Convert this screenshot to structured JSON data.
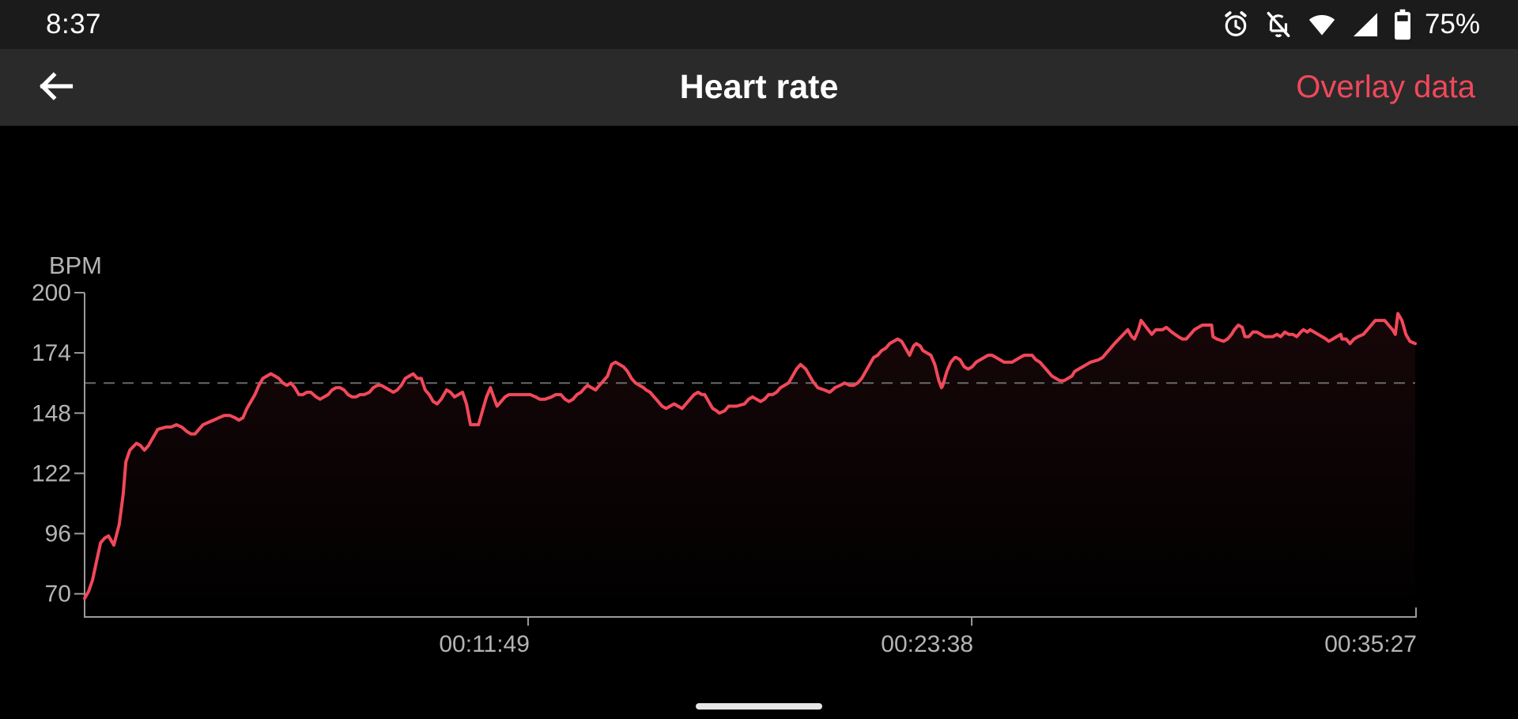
{
  "status_bar": {
    "time": "8:37",
    "battery_percent": "75%",
    "icons": [
      "alarm-icon",
      "notifications-off-icon",
      "wifi-icon",
      "cell-signal-icon",
      "battery-icon"
    ]
  },
  "app_bar": {
    "title": "Heart rate",
    "action": "Overlay data"
  },
  "colors": {
    "accent_red": "#f2485a",
    "status_bar_bg": "#1b1b1c",
    "app_bar_bg": "#2a2a2b",
    "axis": "#9b9b9b",
    "tick_label": "#b4b4b4",
    "threshold_line": "#696969",
    "gesture_handle": "#e6e6e6"
  },
  "chart_data": {
    "type": "area",
    "title": "Heart rate",
    "ylabel": "BPM",
    "y_ticks": [
      200,
      174,
      148,
      122,
      96,
      70
    ],
    "ylim": [
      60,
      200
    ],
    "x_ticks": [
      {
        "label": "00:11:49",
        "f": 0.3333
      },
      {
        "label": "00:23:38",
        "f": 0.6667
      },
      {
        "label": "00:35:27",
        "f": 1.0
      }
    ],
    "threshold_bpm": 161,
    "grid": false,
    "legend": false,
    "line_color": "#f2485a",
    "fill_top": "rgba(242,72,90,0.10)",
    "fill_bottom": "rgba(242,72,90,0)",
    "points": [
      [
        0.0,
        68
      ],
      [
        0.003,
        71
      ],
      [
        0.006,
        76
      ],
      [
        0.009,
        84
      ],
      [
        0.012,
        92
      ],
      [
        0.015,
        94
      ],
      [
        0.018,
        95
      ],
      [
        0.021,
        92
      ],
      [
        0.022,
        91
      ],
      [
        0.026,
        100
      ],
      [
        0.029,
        113
      ],
      [
        0.031,
        127
      ],
      [
        0.034,
        132
      ],
      [
        0.039,
        135
      ],
      [
        0.042,
        134
      ],
      [
        0.045,
        132
      ],
      [
        0.048,
        134
      ],
      [
        0.051,
        137
      ],
      [
        0.055,
        141
      ],
      [
        0.061,
        142
      ],
      [
        0.065,
        142
      ],
      [
        0.069,
        143
      ],
      [
        0.073,
        142
      ],
      [
        0.077,
        140
      ],
      [
        0.08,
        139
      ],
      [
        0.083,
        139
      ],
      [
        0.086,
        141
      ],
      [
        0.089,
        143
      ],
      [
        0.093,
        144
      ],
      [
        0.097,
        145
      ],
      [
        0.101,
        146
      ],
      [
        0.105,
        147
      ],
      [
        0.109,
        147
      ],
      [
        0.113,
        146
      ],
      [
        0.116,
        145
      ],
      [
        0.119,
        146
      ],
      [
        0.122,
        150
      ],
      [
        0.125,
        153
      ],
      [
        0.128,
        156
      ],
      [
        0.131,
        160
      ],
      [
        0.134,
        163
      ],
      [
        0.137,
        164
      ],
      [
        0.14,
        165
      ],
      [
        0.143,
        164
      ],
      [
        0.146,
        163
      ],
      [
        0.149,
        161
      ],
      [
        0.152,
        160
      ],
      [
        0.155,
        161
      ],
      [
        0.158,
        159
      ],
      [
        0.161,
        156
      ],
      [
        0.164,
        156
      ],
      [
        0.167,
        157
      ],
      [
        0.17,
        157
      ],
      [
        0.174,
        155
      ],
      [
        0.177,
        154
      ],
      [
        0.18,
        155
      ],
      [
        0.183,
        156
      ],
      [
        0.186,
        158
      ],
      [
        0.189,
        159
      ],
      [
        0.192,
        159
      ],
      [
        0.195,
        158
      ],
      [
        0.198,
        156
      ],
      [
        0.201,
        155
      ],
      [
        0.204,
        155
      ],
      [
        0.207,
        156
      ],
      [
        0.21,
        156
      ],
      [
        0.214,
        157
      ],
      [
        0.217,
        159
      ],
      [
        0.22,
        160
      ],
      [
        0.223,
        160
      ],
      [
        0.226,
        159
      ],
      [
        0.229,
        158
      ],
      [
        0.232,
        157
      ],
      [
        0.235,
        158
      ],
      [
        0.238,
        160
      ],
      [
        0.241,
        163
      ],
      [
        0.244,
        164
      ],
      [
        0.247,
        165
      ],
      [
        0.25,
        163
      ],
      [
        0.253,
        163
      ],
      [
        0.256,
        158
      ],
      [
        0.259,
        156
      ],
      [
        0.262,
        153
      ],
      [
        0.265,
        152
      ],
      [
        0.268,
        154
      ],
      [
        0.272,
        158
      ],
      [
        0.275,
        157
      ],
      [
        0.278,
        155
      ],
      [
        0.281,
        156
      ],
      [
        0.284,
        157
      ],
      [
        0.287,
        152
      ],
      [
        0.29,
        143
      ],
      [
        0.296,
        143
      ],
      [
        0.299,
        149
      ],
      [
        0.302,
        155
      ],
      [
        0.305,
        159
      ],
      [
        0.308,
        154
      ],
      [
        0.31,
        151
      ],
      [
        0.313,
        153
      ],
      [
        0.316,
        155
      ],
      [
        0.319,
        156
      ],
      [
        0.327,
        156
      ],
      [
        0.335,
        156
      ],
      [
        0.339,
        155
      ],
      [
        0.342,
        154
      ],
      [
        0.346,
        154
      ],
      [
        0.351,
        155
      ],
      [
        0.354,
        156
      ],
      [
        0.358,
        156
      ],
      [
        0.361,
        154
      ],
      [
        0.364,
        153
      ],
      [
        0.367,
        154
      ],
      [
        0.37,
        156
      ],
      [
        0.373,
        157
      ],
      [
        0.376,
        159
      ],
      [
        0.378,
        160
      ],
      [
        0.381,
        159
      ],
      [
        0.384,
        158
      ],
      [
        0.387,
        160
      ],
      [
        0.39,
        162
      ],
      [
        0.393,
        164
      ],
      [
        0.396,
        169
      ],
      [
        0.399,
        170
      ],
      [
        0.402,
        169
      ],
      [
        0.405,
        168
      ],
      [
        0.408,
        166
      ],
      [
        0.411,
        163
      ],
      [
        0.414,
        161
      ],
      [
        0.417,
        160
      ],
      [
        0.42,
        159
      ],
      [
        0.422,
        158
      ],
      [
        0.425,
        157
      ],
      [
        0.428,
        155
      ],
      [
        0.431,
        153
      ],
      [
        0.434,
        151
      ],
      [
        0.437,
        150
      ],
      [
        0.44,
        151
      ],
      [
        0.443,
        152
      ],
      [
        0.446,
        151
      ],
      [
        0.449,
        150
      ],
      [
        0.452,
        152
      ],
      [
        0.455,
        154
      ],
      [
        0.458,
        156
      ],
      [
        0.461,
        157
      ],
      [
        0.464,
        156
      ],
      [
        0.466,
        156
      ],
      [
        0.469,
        153
      ],
      [
        0.472,
        150
      ],
      [
        0.475,
        149
      ],
      [
        0.477,
        148
      ],
      [
        0.481,
        149
      ],
      [
        0.484,
        151
      ],
      [
        0.49,
        151
      ],
      [
        0.496,
        152
      ],
      [
        0.499,
        154
      ],
      [
        0.502,
        155
      ],
      [
        0.505,
        154
      ],
      [
        0.508,
        153
      ],
      [
        0.511,
        154
      ],
      [
        0.514,
        156
      ],
      [
        0.517,
        156
      ],
      [
        0.52,
        157
      ],
      [
        0.523,
        159
      ],
      [
        0.526,
        160
      ],
      [
        0.529,
        161
      ],
      [
        0.532,
        164
      ],
      [
        0.535,
        167
      ],
      [
        0.538,
        169
      ],
      [
        0.542,
        167
      ],
      [
        0.547,
        162
      ],
      [
        0.551,
        159
      ],
      [
        0.556,
        158
      ],
      [
        0.56,
        157
      ],
      [
        0.564,
        159
      ],
      [
        0.568,
        160
      ],
      [
        0.571,
        161
      ],
      [
        0.575,
        160
      ],
      [
        0.578,
        160
      ],
      [
        0.581,
        161
      ],
      [
        0.584,
        163
      ],
      [
        0.587,
        166
      ],
      [
        0.59,
        169
      ],
      [
        0.593,
        172
      ],
      [
        0.596,
        173
      ],
      [
        0.599,
        175
      ],
      [
        0.602,
        176
      ],
      [
        0.605,
        178
      ],
      [
        0.608,
        179
      ],
      [
        0.611,
        180
      ],
      [
        0.614,
        179
      ],
      [
        0.617,
        176
      ],
      [
        0.62,
        173
      ],
      [
        0.623,
        177
      ],
      [
        0.625,
        178
      ],
      [
        0.628,
        177
      ],
      [
        0.63,
        175
      ],
      [
        0.633,
        174
      ],
      [
        0.636,
        173
      ],
      [
        0.639,
        169
      ],
      [
        0.642,
        162
      ],
      [
        0.644,
        159
      ],
      [
        0.645,
        160
      ],
      [
        0.648,
        166
      ],
      [
        0.651,
        170
      ],
      [
        0.654,
        172
      ],
      [
        0.655,
        172
      ],
      [
        0.658,
        171
      ],
      [
        0.661,
        168
      ],
      [
        0.664,
        167
      ],
      [
        0.667,
        168
      ],
      [
        0.67,
        170
      ],
      [
        0.673,
        171
      ],
      [
        0.676,
        172
      ],
      [
        0.679,
        173
      ],
      [
        0.682,
        173
      ],
      [
        0.685,
        172
      ],
      [
        0.688,
        171
      ],
      [
        0.691,
        170
      ],
      [
        0.697,
        170
      ],
      [
        0.7,
        171
      ],
      [
        0.703,
        172
      ],
      [
        0.706,
        173
      ],
      [
        0.712,
        173
      ],
      [
        0.715,
        171
      ],
      [
        0.718,
        170
      ],
      [
        0.721,
        168
      ],
      [
        0.724,
        166
      ],
      [
        0.727,
        164
      ],
      [
        0.73,
        163
      ],
      [
        0.733,
        162
      ],
      [
        0.736,
        162
      ],
      [
        0.739,
        163
      ],
      [
        0.742,
        164
      ],
      [
        0.744,
        166
      ],
      [
        0.747,
        167
      ],
      [
        0.75,
        168
      ],
      [
        0.753,
        169
      ],
      [
        0.756,
        170
      ],
      [
        0.762,
        171
      ],
      [
        0.765,
        172
      ],
      [
        0.768,
        174
      ],
      [
        0.771,
        176
      ],
      [
        0.774,
        178
      ],
      [
        0.779,
        181
      ],
      [
        0.784,
        184
      ],
      [
        0.787,
        181
      ],
      [
        0.789,
        180
      ],
      [
        0.792,
        184
      ],
      [
        0.794,
        188
      ],
      [
        0.798,
        185
      ],
      [
        0.802,
        182
      ],
      [
        0.805,
        184
      ],
      [
        0.81,
        184
      ],
      [
        0.813,
        185
      ],
      [
        0.817,
        183
      ],
      [
        0.822,
        181
      ],
      [
        0.825,
        180
      ],
      [
        0.828,
        180
      ],
      [
        0.831,
        182
      ],
      [
        0.834,
        184
      ],
      [
        0.837,
        185
      ],
      [
        0.84,
        186
      ],
      [
        0.844,
        186
      ],
      [
        0.847,
        186
      ],
      [
        0.848,
        181
      ],
      [
        0.851,
        180
      ],
      [
        0.856,
        179
      ],
      [
        0.859,
        180
      ],
      [
        0.862,
        182
      ],
      [
        0.864,
        184
      ],
      [
        0.867,
        186
      ],
      [
        0.87,
        185
      ],
      [
        0.872,
        181
      ],
      [
        0.875,
        181
      ],
      [
        0.878,
        183
      ],
      [
        0.881,
        183
      ],
      [
        0.884,
        182
      ],
      [
        0.887,
        181
      ],
      [
        0.893,
        181
      ],
      [
        0.896,
        182
      ],
      [
        0.899,
        181
      ],
      [
        0.902,
        183
      ],
      [
        0.905,
        182
      ],
      [
        0.908,
        182
      ],
      [
        0.911,
        181
      ],
      [
        0.914,
        183
      ],
      [
        0.916,
        184
      ],
      [
        0.919,
        183
      ],
      [
        0.921,
        184
      ],
      [
        0.924,
        183
      ],
      [
        0.927,
        182
      ],
      [
        0.93,
        181
      ],
      [
        0.933,
        180
      ],
      [
        0.935,
        179
      ],
      [
        0.938,
        180
      ],
      [
        0.941,
        181
      ],
      [
        0.944,
        182
      ],
      [
        0.945,
        180
      ],
      [
        0.948,
        180
      ],
      [
        0.951,
        178
      ],
      [
        0.954,
        180
      ],
      [
        0.957,
        181
      ],
      [
        0.961,
        182
      ],
      [
        0.964,
        184
      ],
      [
        0.967,
        186
      ],
      [
        0.97,
        188
      ],
      [
        0.974,
        188
      ],
      [
        0.977,
        188
      ],
      [
        0.98,
        186
      ],
      [
        0.983,
        184
      ],
      [
        0.985,
        182
      ],
      [
        0.987,
        191
      ],
      [
        0.99,
        188
      ],
      [
        0.993,
        182
      ],
      [
        0.996,
        179
      ],
      [
        1.0,
        178
      ]
    ]
  },
  "nav_bar": {
    "gesture_handle": "home-gesture-handle"
  }
}
